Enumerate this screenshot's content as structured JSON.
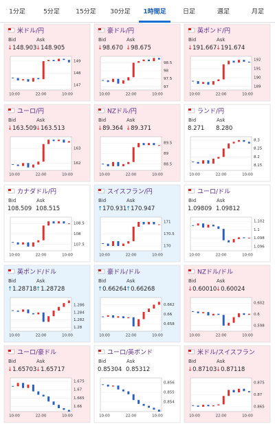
{
  "tabs": [
    "1分足",
    "5分足",
    "15分足",
    "30分足",
    "1時間足",
    "日足",
    "週足",
    "月足"
  ],
  "active_tab": 4,
  "bid_label": "Bid",
  "ask_label": "Ask",
  "cards": [
    {
      "name": "米ドル/円",
      "trend": "down",
      "bid_arrow": "↓",
      "bid": "148.903",
      "ask_arrow": "↓",
      "ask": "148.905",
      "ylim": [
        146.6,
        149.4
      ],
      "yticks": [
        149,
        148,
        147
      ],
      "xlabels": [
        "10:00",
        "22:00",
        "10:00"
      ],
      "closes": [
        147.6,
        147.4,
        147.5,
        147.3,
        147.6,
        147.5,
        149.0,
        149.1,
        149.0,
        149.2,
        149.1,
        148.9
      ]
    },
    {
      "name": "豪ドル/円",
      "trend": "down",
      "bid_arrow": "↓",
      "bid": "98.670",
      "ask_arrow": "↓",
      "ask": "98.675",
      "ylim": [
        96.8,
        98.9
      ],
      "yticks": [
        98.5,
        98,
        97.5,
        97
      ],
      "xlabels": [
        "10:00",
        "22:00",
        "10:00"
      ],
      "closes": [
        97.4,
        97.3,
        97.5,
        97.2,
        97.4,
        97.6,
        98.5,
        98.6,
        98.7,
        98.6,
        98.8,
        98.7
      ]
    },
    {
      "name": "英ポンド/円",
      "trend": "down",
      "bid_arrow": "↓",
      "bid": "191.667",
      "ask_arrow": "↓",
      "ask": "191.674",
      "ylim": [
        188.6,
        192.4
      ],
      "yticks": [
        192,
        191,
        190,
        189
      ],
      "xlabels": [
        "10:00",
        "22:00",
        "10:00"
      ],
      "closes": [
        189.6,
        189.3,
        189.5,
        189.2,
        189.6,
        189.8,
        191.5,
        191.9,
        191.7,
        192.0,
        191.8,
        191.7
      ]
    },
    {
      "name": "ユーロ/円",
      "trend": "down",
      "bid_arrow": "↓",
      "bid": "163.509",
      "ask_arrow": "↓",
      "ask": "163.513",
      "ylim": [
        161.5,
        163.8
      ],
      "yticks": [
        163,
        162
      ],
      "xlabels": [
        "10:00",
        "22:00",
        "10:00"
      ],
      "closes": [
        161.9,
        161.8,
        162.0,
        161.7,
        161.9,
        162.1,
        163.3,
        163.6,
        163.5,
        163.6,
        163.4,
        163.5
      ]
    },
    {
      "name": "NZドル/円",
      "trend": "down",
      "bid_arrow": "↓",
      "bid": "89.364",
      "ask_arrow": "↓",
      "ask": "89.371",
      "ylim": [
        88.2,
        89.8
      ],
      "yticks": [
        89.5,
        89,
        88.5
      ],
      "xlabels": [
        "10:00",
        "22:00",
        "10:00"
      ],
      "closes": [
        88.5,
        88.4,
        88.6,
        88.4,
        88.5,
        88.6,
        89.3,
        89.5,
        89.4,
        89.5,
        89.4,
        89.4
      ]
    },
    {
      "name": "ランド/円",
      "trend": "flat",
      "bid_arrow": "",
      "bid": "8.271",
      "ask_arrow": "",
      "ask": "8.280",
      "ylim": [
        8.12,
        8.32
      ],
      "yticks": [
        8.3,
        8.25,
        8.2,
        8.15
      ],
      "xlabels": [
        "10:00",
        "22:00",
        "10:00"
      ],
      "closes": [
        8.17,
        8.16,
        8.18,
        8.16,
        8.19,
        8.2,
        8.25,
        8.28,
        8.29,
        8.3,
        8.29,
        8.28
      ]
    },
    {
      "name": "カナダドル/円",
      "trend": "flat",
      "bid_arrow": "",
      "bid": "108.509",
      "ask_arrow": "",
      "ask": "108.515",
      "ylim": [
        107.2,
        108.8
      ],
      "yticks": [
        108.5,
        108,
        107.5
      ],
      "xlabels": [
        "10:00",
        "22:00",
        "10:00"
      ],
      "closes": [
        107.6,
        107.5,
        107.6,
        107.4,
        107.6,
        107.7,
        108.4,
        108.6,
        108.5,
        108.6,
        108.5,
        108.5
      ]
    },
    {
      "name": "スイスフラン/円",
      "trend": "up",
      "bid_arrow": "↑",
      "bid": "170.931",
      "ask_arrow": "↑",
      "ask": "170.947",
      "ylim": [
        169.8,
        171.2
      ],
      "yticks": [
        171,
        170.5,
        170
      ],
      "xlabels": [
        "10:00",
        "22:00",
        "10:00"
      ],
      "closes": [
        170.1,
        170.0,
        170.2,
        170.0,
        170.1,
        170.2,
        170.8,
        171.0,
        170.9,
        171.0,
        170.9,
        170.9
      ]
    },
    {
      "name": "ユーロ/ドル",
      "trend": "flat",
      "bid_arrow": "",
      "bid": "1.09809",
      "ask_arrow": "",
      "ask": "1.09812",
      "ylim": [
        1.095,
        1.103
      ],
      "yticks": [
        1.102,
        1.1,
        1.098,
        1.096
      ],
      "xlabels": [
        "10:00",
        "22:00",
        "10:00"
      ],
      "closes": [
        1.101,
        1.1015,
        1.1005,
        1.1012,
        1.1008,
        1.1002,
        1.0975,
        1.097,
        1.0978,
        1.0982,
        1.098,
        1.0981
      ]
    },
    {
      "name": "英ポンド/ドル",
      "trend": "up",
      "bid_arrow": "↑",
      "bid": "1.28718",
      "ask_arrow": "↑",
      "ask": "1.28728",
      "ylim": [
        1.279,
        1.288
      ],
      "yticks": [
        1.286,
        1.284,
        1.282,
        1.28
      ],
      "xlabels": [
        "10:00",
        "22:00",
        "10:00"
      ],
      "closes": [
        1.2845,
        1.2842,
        1.2848,
        1.2838,
        1.2835,
        1.284,
        1.2815,
        1.283,
        1.2845,
        1.2855,
        1.2865,
        1.2872
      ]
    },
    {
      "name": "豪ドル/ドル",
      "trend": "up",
      "bid_arrow": "↑",
      "bid": "0.66264",
      "ask_arrow": "↑",
      "ask": "0.66268",
      "ylim": [
        0.6565,
        0.6635
      ],
      "yticks": [
        0.662,
        0.66,
        0.658
      ],
      "xlabels": [
        "10:00",
        "22:00",
        "10:00"
      ],
      "closes": [
        0.6595,
        0.6598,
        0.6593,
        0.6596,
        0.6592,
        0.6594,
        0.6575,
        0.659,
        0.6605,
        0.6612,
        0.662,
        0.6626
      ]
    },
    {
      "name": "NZドル/ドル",
      "trend": "down",
      "bid_arrow": "↓",
      "bid": "0.60010",
      "ask_arrow": "↓",
      "ask": "0.60024",
      "ylim": [
        0.597,
        0.603
      ],
      "yticks": [
        0.602,
        0.6,
        0.598
      ],
      "xlabels": [
        "10:00",
        "22:00",
        "10:00"
      ],
      "closes": [
        0.6005,
        0.6002,
        0.6004,
        0.5998,
        0.6001,
        0.5999,
        0.598,
        0.5985,
        0.5995,
        0.6002,
        0.5999,
        0.6001
      ]
    },
    {
      "name": "ユーロ/豪ドル",
      "trend": "down",
      "bid_arrow": "↓",
      "bid": "1.65703",
      "ask_arrow": "↓",
      "ask": "1.65717",
      "ylim": [
        1.657,
        1.677
      ],
      "yticks": [
        1.675,
        1.67,
        1.665,
        1.66
      ],
      "xlabels": [
        "10:00",
        "22:00",
        "10:00"
      ],
      "closes": [
        1.672,
        1.674,
        1.671,
        1.673,
        1.669,
        1.667,
        1.666,
        1.663,
        1.661,
        1.659,
        1.658,
        1.657
      ]
    },
    {
      "name": "ユーロ/英ポンド",
      "trend": "flat",
      "bid_arrow": "",
      "bid": "0.85304",
      "ask_arrow": "",
      "ask": "0.85312",
      "ylim": [
        0.853,
        0.8565
      ],
      "yticks": [
        0.856,
        0.855,
        0.854
      ],
      "xlabels": [
        "10:00",
        "22:00",
        "10:00"
      ],
      "closes": [
        0.8558,
        0.8556,
        0.8557,
        0.8553,
        0.8551,
        0.8548,
        0.8542,
        0.8538,
        0.8536,
        0.8534,
        0.8532,
        0.853
      ]
    },
    {
      "name": "米ドル/スイスフラン",
      "trend": "down",
      "bid_arrow": "↓",
      "bid": "0.87103",
      "ask_arrow": "↓",
      "ask": "0.87118",
      "ylim": [
        0.863,
        0.877
      ],
      "yticks": [
        0.875,
        0.87,
        0.865
      ],
      "xlabels": [
        "10:00",
        "22:00",
        "10:00"
      ],
      "closes": [
        0.8655,
        0.865,
        0.8658,
        0.8652,
        0.8656,
        0.866,
        0.8695,
        0.872,
        0.871,
        0.8725,
        0.8715,
        0.871
      ]
    }
  ]
}
